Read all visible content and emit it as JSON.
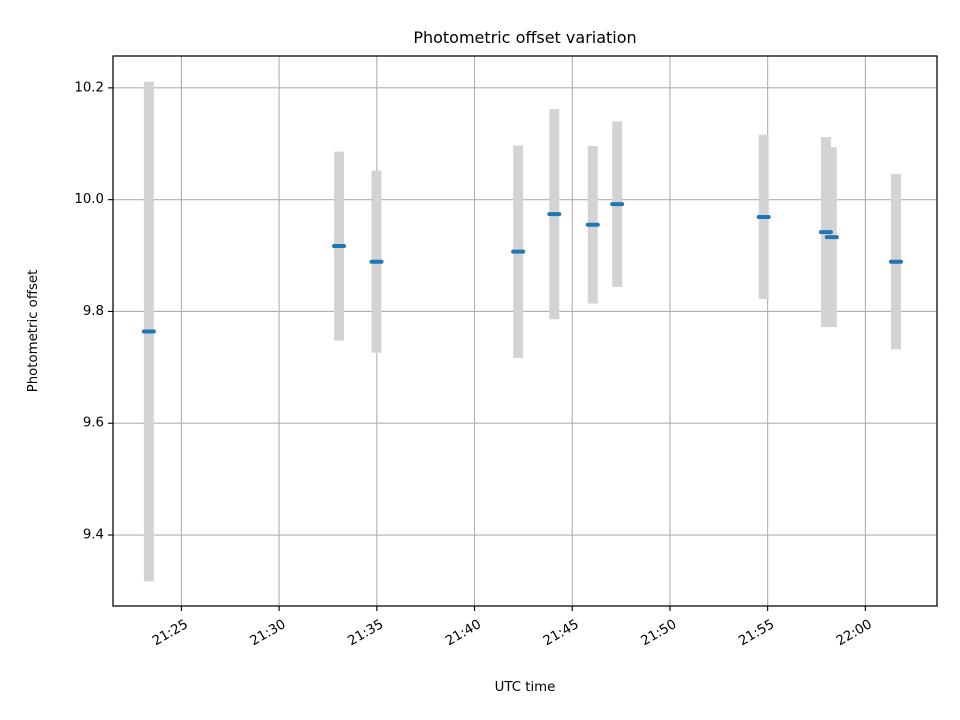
{
  "chart_data": {
    "type": "scatter",
    "title": "Photometric offset variation",
    "xlabel": "UTC time",
    "ylabel": "Photometric offset",
    "x_is_time": true,
    "xlim": [
      "21:21:30",
      "22:03:40"
    ],
    "ylim": [
      9.273,
      10.257
    ],
    "x_ticks": [
      "21:25",
      "21:30",
      "21:35",
      "21:40",
      "21:45",
      "21:50",
      "21:55",
      "22:00"
    ],
    "y_ticks": [
      "9.4",
      "9.6",
      "9.8",
      "10.0",
      "10.2"
    ],
    "grid": true,
    "error_bar_color": "#d3d3d3",
    "point_color": "#1f77b4",
    "series": [
      {
        "points": [
          {
            "time": "21:23:20",
            "offset": 9.764,
            "error": 0.447
          },
          {
            "time": "21:33:04",
            "offset": 9.917,
            "error": 0.169
          },
          {
            "time": "21:34:59",
            "offset": 9.889,
            "error": 0.163
          },
          {
            "time": "21:42:14",
            "offset": 9.907,
            "error": 0.19
          },
          {
            "time": "21:44:05",
            "offset": 9.974,
            "error": 0.188
          },
          {
            "time": "21:46:03",
            "offset": 9.955,
            "error": 0.141
          },
          {
            "time": "21:47:18",
            "offset": 9.992,
            "error": 0.148
          },
          {
            "time": "21:54:48",
            "offset": 9.969,
            "error": 0.147
          },
          {
            "time": "21:57:59",
            "offset": 9.942,
            "error": 0.17
          },
          {
            "time": "21:58:17",
            "offset": 9.933,
            "error": 0.161
          },
          {
            "time": "22:01:34",
            "offset": 9.889,
            "error": 0.157
          }
        ]
      }
    ]
  }
}
